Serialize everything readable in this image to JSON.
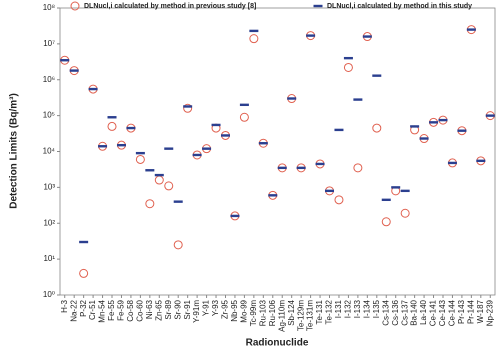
{
  "chart_data": {
    "type": "scatter",
    "x_label": "Radionuclide",
    "y_label": "Detection Limits (Bq/m³)",
    "yscale": "log",
    "ylim": [
      1,
      100000000
    ],
    "yticks": [
      {
        "value": 1,
        "label": "10⁰"
      },
      {
        "value": 10,
        "label": "10¹"
      },
      {
        "value": 100,
        "label": "10²"
      },
      {
        "value": 1000,
        "label": "10³"
      },
      {
        "value": 10000,
        "label": "10⁴"
      },
      {
        "value": 100000,
        "label": "10⁵"
      },
      {
        "value": 1000000,
        "label": "10⁶"
      },
      {
        "value": 10000000,
        "label": "10⁷"
      },
      {
        "value": 100000000,
        "label": "10⁸"
      }
    ],
    "legend": "top",
    "categories": [
      "H-3",
      "Na-22",
      "P-32",
      "Cr-51",
      "Mn-54",
      "Fe-55",
      "Fe-59",
      "Co-58",
      "Co-60",
      "Ni-63",
      "Zn-65",
      "Sr-89",
      "Sr-90",
      "Sr-91",
      "Y-91m",
      "Y-91",
      "Y-93",
      "Zr-95",
      "Nb-95",
      "Mo-99",
      "Tc-99m",
      "Ru-103",
      "Ru-106",
      "Ag-110m",
      "Sb-124",
      "Te-129m",
      "Te-131m",
      "Te-131",
      "Te-132",
      "I-131",
      "I-132",
      "I-133",
      "I-134",
      "I-135",
      "Cs-134",
      "Cs-136",
      "Cs-137",
      "Ba-140",
      "La-140",
      "Ce-141",
      "Ce-143",
      "Ce-144",
      "Pr-143",
      "Pr-144",
      "W-187",
      "Np-239"
    ],
    "series": [
      {
        "name": "DLNucl,i calculated by method in previous study [8]",
        "color": "#e0604f",
        "marker": "circle",
        "values": [
          3500000,
          1800000,
          4,
          550000,
          14000,
          50000,
          15000,
          45000,
          6000,
          350,
          1600,
          1100,
          25,
          160000,
          8000,
          12000,
          45000,
          28000,
          160,
          90000,
          14000000,
          17000,
          600,
          3500,
          300000,
          3500,
          17000000,
          4500,
          800,
          450,
          2200000,
          3500,
          16000000,
          45000,
          110,
          800,
          190,
          40000,
          23000,
          65000,
          75000,
          4800,
          38000,
          25000000,
          5500,
          100000
        ]
      },
      {
        "name": "DLNucl,i calculated by method in this study",
        "color": "#2b3f8f",
        "marker": "dash",
        "values": [
          3500000,
          1800000,
          30,
          550000,
          14000,
          90000,
          15000,
          45000,
          9000,
          3000,
          2200,
          12000,
          400,
          180000,
          8000,
          12000,
          55000,
          28000,
          160,
          200000,
          23000000,
          17000,
          600,
          3500,
          300000,
          3500,
          17000000,
          4500,
          800,
          40000,
          4000000,
          280000,
          16000000,
          1300000,
          450,
          1000,
          800,
          50000,
          23000,
          65000,
          75000,
          4800,
          38000,
          25000000,
          5500,
          100000
        ]
      }
    ]
  }
}
